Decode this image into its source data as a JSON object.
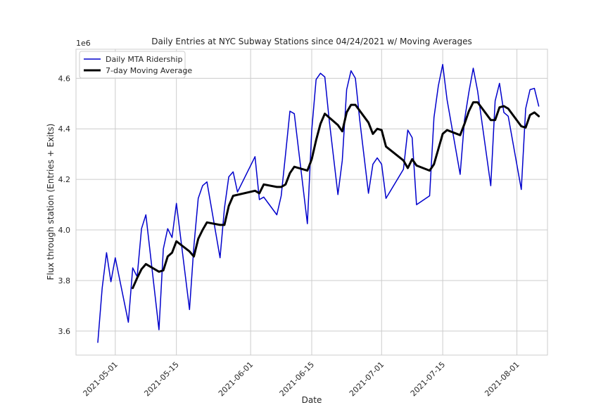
{
  "chart_data": {
    "type": "line",
    "title": "Daily Entries at NYC Subway Stations since 04/24/2021 w/ Moving Averages",
    "xlabel": "Date",
    "ylabel": "Flux through station (Entries + Exits)",
    "y_multiplier_label": "1e6",
    "xlim": [
      "2021-04-22",
      "2021-08-08"
    ],
    "ylim": [
      3.505,
      4.715
    ],
    "x_ticks": [
      "2021-05-01",
      "2021-05-15",
      "2021-06-01",
      "2021-06-15",
      "2021-07-01",
      "2021-07-15",
      "2021-08-01"
    ],
    "y_ticks": [
      "3.6",
      "3.8",
      "4.0",
      "4.2",
      "4.4",
      "4.6"
    ],
    "grid": true,
    "legend_position": "top-left",
    "series": [
      {
        "name": "Daily MTA Ridership",
        "color": "#0000cc",
        "stroke_width": 1.5,
        "points": [
          [
            "2021-04-27",
            3.555
          ],
          [
            "2021-04-28",
            3.77
          ],
          [
            "2021-04-29",
            3.91
          ],
          [
            "2021-04-30",
            3.795
          ],
          [
            "2021-05-01",
            3.89
          ],
          [
            "2021-05-04",
            3.635
          ],
          [
            "2021-05-05",
            3.85
          ],
          [
            "2021-05-06",
            3.815
          ],
          [
            "2021-05-07",
            4.005
          ],
          [
            "2021-05-08",
            4.06
          ],
          [
            "2021-05-11",
            3.605
          ],
          [
            "2021-05-12",
            3.925
          ],
          [
            "2021-05-13",
            4.005
          ],
          [
            "2021-05-14",
            3.97
          ],
          [
            "2021-05-15",
            4.105
          ],
          [
            "2021-05-18",
            3.685
          ],
          [
            "2021-05-19",
            3.935
          ],
          [
            "2021-05-20",
            4.125
          ],
          [
            "2021-05-21",
            4.175
          ],
          [
            "2021-05-22",
            4.19
          ],
          [
            "2021-05-25",
            3.89
          ],
          [
            "2021-05-26",
            4.085
          ],
          [
            "2021-05-27",
            4.21
          ],
          [
            "2021-05-28",
            4.23
          ],
          [
            "2021-05-29",
            4.15
          ],
          [
            "2021-06-02",
            4.29
          ],
          [
            "2021-06-03",
            4.12
          ],
          [
            "2021-06-04",
            4.13
          ],
          [
            "2021-06-07",
            4.06
          ],
          [
            "2021-06-08",
            4.135
          ],
          [
            "2021-06-09",
            4.3
          ],
          [
            "2021-06-10",
            4.47
          ],
          [
            "2021-06-11",
            4.46
          ],
          [
            "2021-06-12",
            4.315
          ],
          [
            "2021-06-14",
            4.025
          ],
          [
            "2021-06-15",
            4.395
          ],
          [
            "2021-06-16",
            4.595
          ],
          [
            "2021-06-17",
            4.62
          ],
          [
            "2021-06-18",
            4.605
          ],
          [
            "2021-06-19",
            4.435
          ],
          [
            "2021-06-21",
            4.14
          ],
          [
            "2021-06-22",
            4.275
          ],
          [
            "2021-06-23",
            4.555
          ],
          [
            "2021-06-24",
            4.63
          ],
          [
            "2021-06-25",
            4.6
          ],
          [
            "2021-06-26",
            4.435
          ],
          [
            "2021-06-28",
            4.145
          ],
          [
            "2021-06-29",
            4.26
          ],
          [
            "2021-06-30",
            4.285
          ],
          [
            "2021-07-01",
            4.26
          ],
          [
            "2021-07-02",
            4.125
          ],
          [
            "2021-07-06",
            4.24
          ],
          [
            "2021-07-07",
            4.395
          ],
          [
            "2021-07-08",
            4.365
          ],
          [
            "2021-07-09",
            4.1
          ],
          [
            "2021-07-12",
            4.135
          ],
          [
            "2021-07-13",
            4.445
          ],
          [
            "2021-07-14",
            4.57
          ],
          [
            "2021-07-15",
            4.655
          ],
          [
            "2021-07-16",
            4.515
          ],
          [
            "2021-07-19",
            4.22
          ],
          [
            "2021-07-20",
            4.435
          ],
          [
            "2021-07-21",
            4.545
          ],
          [
            "2021-07-22",
            4.64
          ],
          [
            "2021-07-23",
            4.55
          ],
          [
            "2021-07-26",
            4.175
          ],
          [
            "2021-07-27",
            4.51
          ],
          [
            "2021-07-28",
            4.58
          ],
          [
            "2021-07-29",
            4.465
          ],
          [
            "2021-07-30",
            4.45
          ],
          [
            "2021-08-02",
            4.16
          ],
          [
            "2021-08-03",
            4.48
          ],
          [
            "2021-08-04",
            4.555
          ],
          [
            "2021-08-05",
            4.56
          ],
          [
            "2021-08-06",
            4.49
          ]
        ]
      },
      {
        "name": "7-day Moving Average",
        "color": "#000000",
        "stroke_width": 3,
        "points": [
          [
            "2021-05-05",
            3.77
          ],
          [
            "2021-05-06",
            3.81
          ],
          [
            "2021-05-07",
            3.845
          ],
          [
            "2021-05-08",
            3.865
          ],
          [
            "2021-05-11",
            3.835
          ],
          [
            "2021-05-12",
            3.84
          ],
          [
            "2021-05-13",
            3.895
          ],
          [
            "2021-05-14",
            3.91
          ],
          [
            "2021-05-15",
            3.955
          ],
          [
            "2021-05-18",
            3.915
          ],
          [
            "2021-05-19",
            3.895
          ],
          [
            "2021-05-20",
            3.965
          ],
          [
            "2021-05-21",
            4.0
          ],
          [
            "2021-05-22",
            4.03
          ],
          [
            "2021-05-25",
            4.02
          ],
          [
            "2021-05-26",
            4.02
          ],
          [
            "2021-05-27",
            4.095
          ],
          [
            "2021-05-28",
            4.135
          ],
          [
            "2021-06-02",
            4.155
          ],
          [
            "2021-06-03",
            4.145
          ],
          [
            "2021-06-04",
            4.18
          ],
          [
            "2021-06-07",
            4.17
          ],
          [
            "2021-06-08",
            4.17
          ],
          [
            "2021-06-09",
            4.18
          ],
          [
            "2021-06-10",
            4.225
          ],
          [
            "2021-06-11",
            4.25
          ],
          [
            "2021-06-14",
            4.235
          ],
          [
            "2021-06-15",
            4.28
          ],
          [
            "2021-06-16",
            4.355
          ],
          [
            "2021-06-17",
            4.42
          ],
          [
            "2021-06-18",
            4.46
          ],
          [
            "2021-06-21",
            4.415
          ],
          [
            "2021-06-22",
            4.39
          ],
          [
            "2021-06-23",
            4.465
          ],
          [
            "2021-06-24",
            4.495
          ],
          [
            "2021-06-25",
            4.495
          ],
          [
            "2021-06-28",
            4.425
          ],
          [
            "2021-06-29",
            4.38
          ],
          [
            "2021-06-30",
            4.4
          ],
          [
            "2021-07-01",
            4.395
          ],
          [
            "2021-07-02",
            4.33
          ],
          [
            "2021-07-06",
            4.275
          ],
          [
            "2021-07-07",
            4.245
          ],
          [
            "2021-07-08",
            4.28
          ],
          [
            "2021-07-09",
            4.255
          ],
          [
            "2021-07-12",
            4.235
          ],
          [
            "2021-07-13",
            4.26
          ],
          [
            "2021-07-14",
            4.32
          ],
          [
            "2021-07-15",
            4.38
          ],
          [
            "2021-07-16",
            4.395
          ],
          [
            "2021-07-19",
            4.375
          ],
          [
            "2021-07-20",
            4.42
          ],
          [
            "2021-07-21",
            4.47
          ],
          [
            "2021-07-22",
            4.505
          ],
          [
            "2021-07-23",
            4.505
          ],
          [
            "2021-07-26",
            4.435
          ],
          [
            "2021-07-27",
            4.435
          ],
          [
            "2021-07-28",
            4.485
          ],
          [
            "2021-07-29",
            4.49
          ],
          [
            "2021-07-30",
            4.48
          ],
          [
            "2021-08-02",
            4.41
          ],
          [
            "2021-08-03",
            4.405
          ],
          [
            "2021-08-04",
            4.455
          ],
          [
            "2021-08-05",
            4.465
          ],
          [
            "2021-08-06",
            4.45
          ]
        ]
      }
    ]
  }
}
